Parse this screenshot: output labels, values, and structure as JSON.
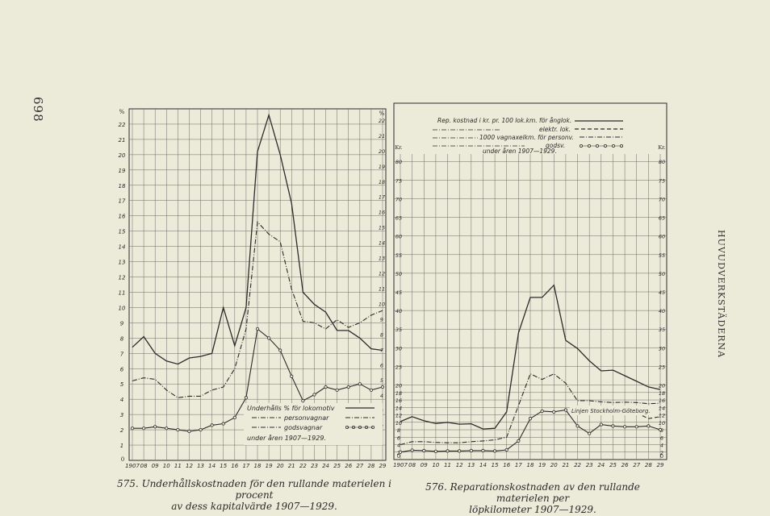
{
  "page_number": "698",
  "running_head": "HUVUDVERKSTÄDERNA",
  "captions": [
    {
      "line1": "575.  Underhållskostnaden för den rullande materielen i procent",
      "line2": "av dess kapitalvärde 1907—1929."
    },
    {
      "line1": "576.  Reparationskostnaden av den rullande materielen per",
      "line2": "löpkilometer 1907—1929."
    }
  ],
  "chart_data": [
    {
      "type": "line",
      "left_unit": "%",
      "right_unit": "%",
      "x_tick_labels": [
        "1907",
        "08",
        "09",
        "10",
        "11",
        "12",
        "13",
        "14",
        "15",
        "16",
        "17",
        "18",
        "19",
        "20",
        "21",
        "22",
        "23",
        "24",
        "25",
        "26",
        "27",
        "28",
        "29"
      ],
      "ylim": [
        0,
        23
      ],
      "y_ticks": [
        1,
        2,
        3,
        4,
        5,
        6,
        7,
        8,
        9,
        10,
        11,
        12,
        13,
        14,
        15,
        16,
        17,
        18,
        19,
        20,
        21,
        22
      ],
      "y_tick_labels": [
        "1",
        "2",
        "3",
        "4",
        "5",
        "6",
        "7",
        "8",
        "9",
        "10",
        "11",
        "12",
        "13",
        "14",
        "15",
        "16",
        "17",
        "18",
        "19",
        "20",
        "21",
        "22"
      ],
      "legend": {
        "title": "Underhålls % för lokomotiv",
        "items": [
          "personvagnar",
          "godsvagnar"
        ],
        "footer": "under åren 1907—1929."
      },
      "series": [
        {
          "name": "lokomotiv",
          "style": "solid",
          "color": "#2b2b2b",
          "values": [
            7.4,
            8.1,
            7.0,
            6.5,
            6.3,
            6.7,
            6.8,
            7.0,
            10.0,
            7.5,
            10.0,
            20.2,
            22.6,
            20.0,
            16.8,
            11.0,
            10.2,
            9.7,
            8.5,
            8.5,
            8.0,
            7.3,
            7.2
          ]
        },
        {
          "name": "personvagnar",
          "style": "dashdot",
          "color": "#2b2b2b",
          "values": [
            5.2,
            5.4,
            5.3,
            4.6,
            4.1,
            4.2,
            4.2,
            4.6,
            4.8,
            6.0,
            8.6,
            15.6,
            14.8,
            14.3,
            11.2,
            9.1,
            9.0,
            8.6,
            9.2,
            8.7,
            9.0,
            9.5,
            9.8
          ]
        },
        {
          "name": "godsvagnar",
          "style": "circles",
          "color": "#2b2b2b",
          "values": [
            2.1,
            2.1,
            2.2,
            2.1,
            2.0,
            1.9,
            2.0,
            2.3,
            2.4,
            2.8,
            4.1,
            8.6,
            8.0,
            7.2,
            5.5,
            3.9,
            4.3,
            4.8,
            4.6,
            4.8,
            5.0,
            4.6,
            4.8
          ]
        }
      ]
    },
    {
      "type": "line",
      "left_unit": "Kr.",
      "right_unit": "Kr.",
      "x_tick_labels": [
        "1907",
        "08",
        "09",
        "10",
        "11",
        "12",
        "13",
        "14",
        "15",
        "16",
        "17",
        "18",
        "19",
        "20",
        "21",
        "22",
        "23",
        "24",
        "25",
        "26",
        "27",
        "28",
        "29"
      ],
      "ylim": [
        0,
        82
      ],
      "y_ticks_upper": [
        20,
        25,
        30,
        35,
        40,
        45,
        50,
        55,
        60,
        65,
        70,
        75,
        80
      ],
      "y_ticks_lower": [
        2,
        4,
        6,
        8,
        10,
        12,
        14,
        16,
        18
      ],
      "legend": {
        "title": "Rep. kostnad i kr. pr. 100 lok.km. för ånglok.",
        "items": [
          "elektr. lok.",
          "1000 vagnaxelkm. för personv.",
          "godsv."
        ],
        "footer": "under åren 1907—1929."
      },
      "annotation": "Linjen Stockholm-Göteborg.",
      "series": [
        {
          "name": "ånglok",
          "style": "solid",
          "color": "#2b2b2b",
          "values": [
            10.2,
            11.5,
            10.4,
            9.7,
            10.0,
            9.5,
            9.6,
            8.2,
            8.4,
            12.8,
            34.0,
            43.5,
            43.5,
            46.8,
            32.0,
            29.8,
            26.5,
            23.8,
            24.0,
            22.5,
            21.0,
            19.5,
            18.8
          ]
        },
        {
          "name": "personv",
          "style": "dashdot",
          "color": "#2b2b2b",
          "values": [
            4.0,
            4.8,
            4.8,
            4.6,
            4.5,
            4.5,
            4.8,
            5.0,
            5.3,
            6.0,
            14.5,
            23.0,
            21.5,
            23.0,
            20.5,
            15.8,
            15.8,
            15.5,
            15.3,
            15.4,
            15.3,
            15.0,
            15.1
          ]
        },
        {
          "name": "godsv",
          "style": "circles",
          "color": "#2b2b2b",
          "values": [
            2.0,
            2.5,
            2.4,
            2.2,
            2.3,
            2.3,
            2.4,
            2.4,
            2.3,
            2.6,
            5.0,
            11.0,
            13.0,
            12.8,
            13.3,
            9.0,
            7.0,
            9.4,
            9.0,
            8.8,
            8.8,
            9.0,
            8.0
          ]
        },
        {
          "name": "elektr. lok.",
          "style": "dashed",
          "color": "#2b2b2b",
          "values": [
            null,
            null,
            null,
            null,
            null,
            null,
            null,
            null,
            null,
            null,
            null,
            null,
            null,
            null,
            null,
            null,
            null,
            null,
            null,
            null,
            12.5,
            11.0,
            11.5
          ]
        }
      ]
    }
  ]
}
